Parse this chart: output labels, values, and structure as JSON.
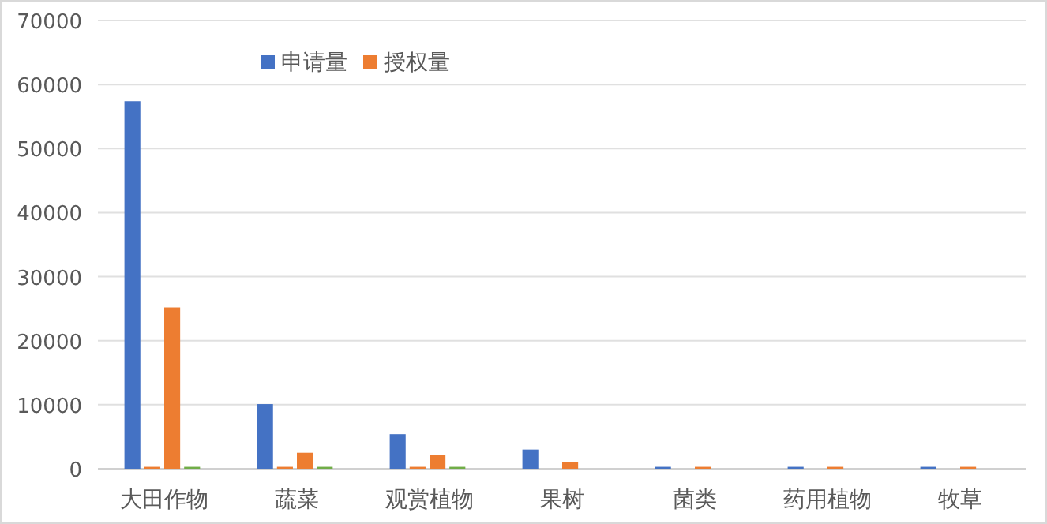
{
  "chart_data": {
    "type": "bar",
    "categories": [
      "大田作物",
      "蔬菜",
      "观赏植物",
      "果树",
      "菌类",
      "药用植物",
      "牧草"
    ],
    "series": [
      {
        "name": "申请量",
        "color": "#4472c4",
        "values": [
          57400,
          10100,
          5400,
          3000,
          300,
          300,
          300
        ]
      },
      {
        "color": "#ed7d31",
        "values": [
          300,
          300,
          300,
          null,
          null,
          null,
          null
        ]
      },
      {
        "name": "授权量",
        "color": "#ed7d31",
        "values": [
          25200,
          2500,
          2200,
          1000,
          300,
          300,
          300
        ]
      },
      {
        "color": "#70ad47",
        "values": [
          300,
          300,
          300,
          null,
          null,
          null,
          null
        ]
      }
    ],
    "ylim": [
      0,
      70000
    ],
    "yticks": [
      0,
      10000,
      20000,
      30000,
      40000,
      50000,
      60000,
      70000
    ],
    "grid": "y",
    "legend": "top"
  }
}
